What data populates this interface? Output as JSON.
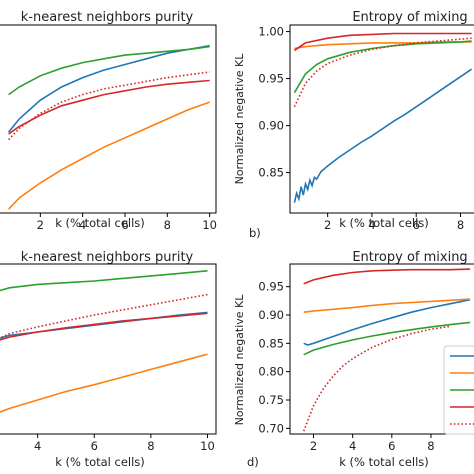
{
  "chart_data": [
    {
      "id": "a",
      "type": "line",
      "title": "k-nearest neighbors purity",
      "xlabel": "k (% total cells)",
      "ylabel": "",
      "panel_label": "",
      "xlim": [
        0,
        10.3
      ],
      "ylim": [
        0,
        1
      ],
      "xticks": [
        2,
        4,
        6,
        8,
        10
      ],
      "yticks": [],
      "series": [
        {
          "color": "#1f77b4",
          "dash": false,
          "x": [
            0.5,
            1,
            2,
            3,
            4,
            5,
            6,
            7,
            8,
            9,
            10
          ],
          "y": [
            0.43,
            0.5,
            0.6,
            0.67,
            0.72,
            0.76,
            0.79,
            0.82,
            0.85,
            0.87,
            0.89
          ]
        },
        {
          "color": "#ff7f0e",
          "dash": false,
          "x": [
            0.5,
            1,
            2,
            3,
            4,
            5,
            6,
            7,
            8,
            9,
            10
          ],
          "y": [
            0.02,
            0.08,
            0.16,
            0.23,
            0.29,
            0.35,
            0.4,
            0.45,
            0.5,
            0.55,
            0.59
          ]
        },
        {
          "color": "#2ca02c",
          "dash": false,
          "x": [
            0.5,
            1,
            2,
            3,
            4,
            5,
            6,
            7,
            8,
            9,
            10
          ],
          "y": [
            0.63,
            0.67,
            0.73,
            0.77,
            0.8,
            0.82,
            0.84,
            0.85,
            0.86,
            0.87,
            0.885
          ]
        },
        {
          "color": "#d62728",
          "dash": false,
          "x": [
            0.5,
            1,
            2,
            3,
            4,
            5,
            6,
            7,
            8,
            9,
            10
          ],
          "y": [
            0.42,
            0.46,
            0.52,
            0.57,
            0.6,
            0.63,
            0.65,
            0.67,
            0.685,
            0.695,
            0.705
          ]
        },
        {
          "color": "#d62728",
          "dash": true,
          "x": [
            0.5,
            1,
            2,
            3,
            4,
            5,
            6,
            7,
            8,
            9,
            10
          ],
          "y": [
            0.39,
            0.45,
            0.53,
            0.59,
            0.63,
            0.66,
            0.68,
            0.7,
            0.72,
            0.735,
            0.75
          ]
        }
      ]
    },
    {
      "id": "b",
      "type": "line",
      "title": "Entropy of mixing",
      "xlabel": "k (% total cells)",
      "ylabel": "Normalized negative KL",
      "panel_label": "b)",
      "xlim": [
        0.3,
        8.7
      ],
      "ylim": [
        0.807,
        1.007
      ],
      "xticks": [
        2,
        4,
        6,
        8
      ],
      "yticks": [
        0.85,
        0.9,
        0.95,
        1.0
      ],
      "series": [
        {
          "color": "#1f77b4",
          "dash": false,
          "x": [
            0.5,
            0.6,
            0.7,
            0.8,
            0.9,
            1.0,
            1.1,
            1.2,
            1.3,
            1.4,
            1.5,
            1.7,
            2.0,
            2.5,
            3,
            3.5,
            4,
            4.5,
            5,
            5.5,
            6,
            6.5,
            7,
            7.5,
            8,
            8.5
          ],
          "y": [
            0.818,
            0.828,
            0.822,
            0.835,
            0.826,
            0.838,
            0.832,
            0.842,
            0.836,
            0.845,
            0.843,
            0.851,
            0.857,
            0.866,
            0.874,
            0.882,
            0.889,
            0.897,
            0.905,
            0.912,
            0.92,
            0.928,
            0.936,
            0.944,
            0.952,
            0.96
          ]
        },
        {
          "color": "#ff7f0e",
          "dash": false,
          "x": [
            0.5,
            1,
            2,
            3,
            4,
            5,
            6,
            7,
            8,
            8.5
          ],
          "y": [
            0.982,
            0.984,
            0.986,
            0.987,
            0.988,
            0.988,
            0.988,
            0.989,
            0.989,
            0.989
          ]
        },
        {
          "color": "#2ca02c",
          "dash": false,
          "x": [
            0.5,
            1,
            1.5,
            2,
            3,
            4,
            5,
            6,
            7,
            8,
            8.5
          ],
          "y": [
            0.935,
            0.955,
            0.965,
            0.971,
            0.978,
            0.982,
            0.985,
            0.987,
            0.988,
            0.989,
            0.99
          ]
        },
        {
          "color": "#d62728",
          "dash": false,
          "x": [
            0.5,
            1,
            2,
            3,
            4,
            5,
            6,
            7,
            8,
            8.5
          ],
          "y": [
            0.98,
            0.988,
            0.993,
            0.996,
            0.997,
            0.998,
            0.998,
            0.998,
            0.998,
            0.998
          ]
        },
        {
          "color": "#d62728",
          "dash": true,
          "x": [
            0.5,
            1,
            1.5,
            2,
            3,
            4,
            5,
            6,
            7,
            8,
            8.5
          ],
          "y": [
            0.92,
            0.945,
            0.958,
            0.966,
            0.975,
            0.981,
            0.985,
            0.988,
            0.99,
            0.992,
            0.993
          ]
        }
      ]
    },
    {
      "id": "c",
      "type": "line",
      "title": "k-nearest neighbors purity",
      "xlabel": "k (% total cells)",
      "ylabel": "",
      "panel_label": "",
      "xlim": [
        2.6,
        10.3
      ],
      "ylim": [
        0,
        1
      ],
      "xticks": [
        4,
        6,
        8,
        10
      ],
      "yticks": [],
      "series": [
        {
          "color": "#1f77b4",
          "dash": false,
          "x": [
            2.6,
            3,
            4,
            5,
            6,
            7,
            8,
            9,
            10
          ],
          "y": [
            0.56,
            0.58,
            0.6,
            0.62,
            0.64,
            0.66,
            0.68,
            0.7,
            0.715
          ]
        },
        {
          "color": "#ff7f0e",
          "dash": false,
          "x": [
            2.6,
            3,
            4,
            5,
            6,
            7,
            8,
            9,
            10
          ],
          "y": [
            0.125,
            0.15,
            0.2,
            0.25,
            0.29,
            0.335,
            0.38,
            0.425,
            0.47
          ]
        },
        {
          "color": "#2ca02c",
          "dash": false,
          "x": [
            2.6,
            3,
            4,
            5,
            6,
            7,
            8,
            9,
            10
          ],
          "y": [
            0.84,
            0.86,
            0.88,
            0.89,
            0.9,
            0.915,
            0.93,
            0.945,
            0.96
          ]
        },
        {
          "color": "#d62728",
          "dash": false,
          "x": [
            2.6,
            3,
            4,
            5,
            6,
            7,
            8,
            9,
            10
          ],
          "y": [
            0.55,
            0.57,
            0.6,
            0.625,
            0.645,
            0.665,
            0.68,
            0.695,
            0.71
          ]
        },
        {
          "color": "#d62728",
          "dash": true,
          "x": [
            2.6,
            3,
            4,
            5,
            6,
            7,
            8,
            9,
            10
          ],
          "y": [
            0.56,
            0.59,
            0.63,
            0.665,
            0.7,
            0.73,
            0.76,
            0.79,
            0.82
          ]
        }
      ]
    },
    {
      "id": "d",
      "type": "line",
      "title": "Entropy of mixing",
      "xlabel": "k (% total cells)",
      "ylabel": "Normalized negative KL",
      "panel_label": "d)",
      "xlim": [
        0.8,
        10.3
      ],
      "ylim": [
        0.69,
        0.99
      ],
      "xticks": [
        2,
        4,
        6,
        8
      ],
      "yticks": [
        0.7,
        0.75,
        0.8,
        0.85,
        0.9,
        0.95
      ],
      "legend_position": "right",
      "series": [
        {
          "color": "#1f77b4",
          "dash": false,
          "x": [
            1.5,
            1.7,
            2,
            2.5,
            3,
            3.5,
            4,
            5,
            6,
            7,
            8,
            9,
            10
          ],
          "y": [
            0.85,
            0.847,
            0.85,
            0.856,
            0.862,
            0.868,
            0.874,
            0.885,
            0.895,
            0.905,
            0.913,
            0.92,
            0.927
          ]
        },
        {
          "color": "#ff7f0e",
          "dash": false,
          "x": [
            1.5,
            2,
            3,
            4,
            5,
            6,
            7,
            8,
            9,
            10
          ],
          "y": [
            0.905,
            0.907,
            0.91,
            0.913,
            0.917,
            0.92,
            0.922,
            0.924,
            0.926,
            0.928
          ]
        },
        {
          "color": "#2ca02c",
          "dash": false,
          "x": [
            1.5,
            2,
            3,
            4,
            5,
            6,
            7,
            8,
            9,
            10
          ],
          "y": [
            0.83,
            0.838,
            0.848,
            0.856,
            0.863,
            0.869,
            0.874,
            0.879,
            0.883,
            0.887
          ]
        },
        {
          "color": "#d62728",
          "dash": false,
          "x": [
            1.5,
            2,
            3,
            4,
            5,
            6,
            7,
            8,
            9,
            10
          ],
          "y": [
            0.955,
            0.962,
            0.97,
            0.975,
            0.978,
            0.979,
            0.98,
            0.98,
            0.98,
            0.981
          ]
        },
        {
          "color": "#d62728",
          "dash": true,
          "x": [
            1.5,
            2,
            2.5,
            3,
            3.5,
            4,
            5,
            6,
            7,
            8,
            9
          ],
          "y": [
            0.695,
            0.74,
            0.77,
            0.792,
            0.81,
            0.823,
            0.843,
            0.857,
            0.867,
            0.875,
            0.88
          ]
        }
      ]
    }
  ]
}
